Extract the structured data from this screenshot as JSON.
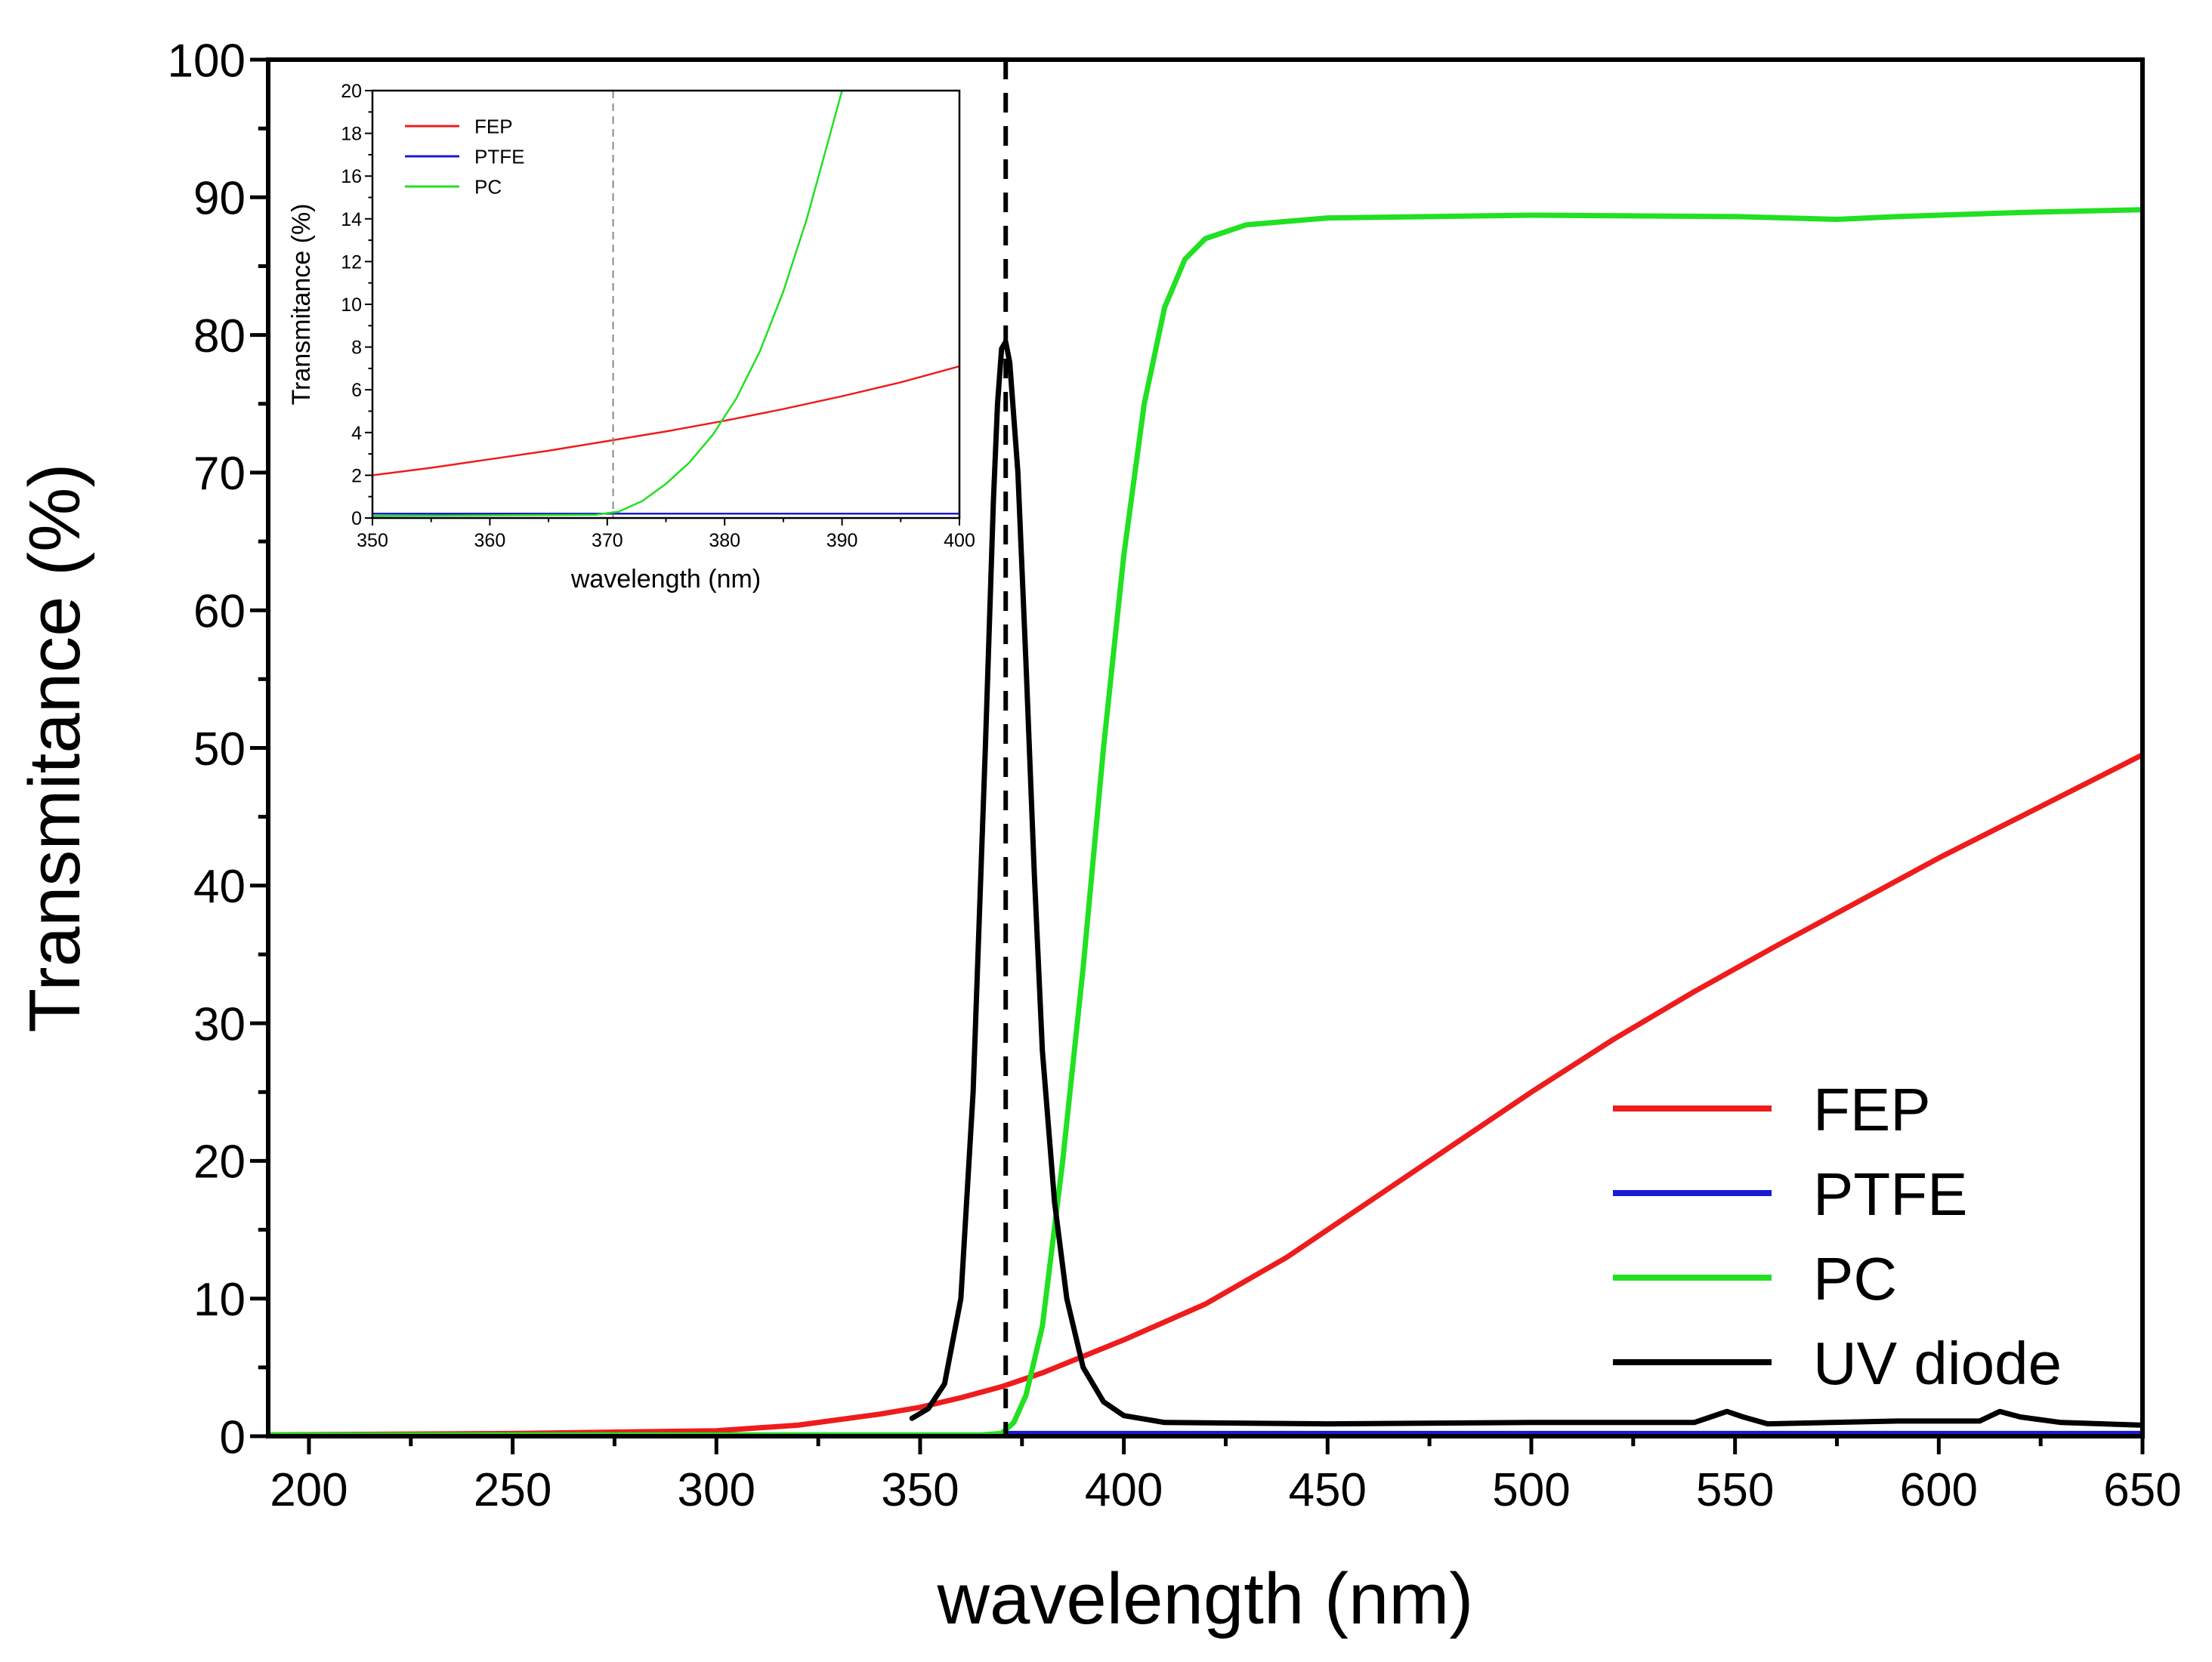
{
  "chart_data": [
    {
      "type": "line",
      "xlabel": "wavelength (nm)",
      "ylabel": "Transmitance (%)",
      "xlim": [
        190,
        650
      ],
      "ylim": [
        0,
        100
      ],
      "xticks": [
        200,
        250,
        300,
        350,
        400,
        450,
        500,
        550,
        600,
        650
      ],
      "yticks": [
        0,
        10,
        20,
        30,
        40,
        50,
        60,
        70,
        80,
        90,
        100
      ],
      "vline": 371,
      "legend_position": "bottom-right",
      "series": [
        {
          "name": "FEP",
          "color": "#ee1c1c",
          "points": [
            [
              190,
              0.1
            ],
            [
              250,
              0.2
            ],
            [
              300,
              0.4
            ],
            [
              320,
              0.8
            ],
            [
              340,
              1.6
            ],
            [
              350,
              2.1
            ],
            [
              360,
              2.8
            ],
            [
              370,
              3.6
            ],
            [
              380,
              4.6
            ],
            [
              390,
              5.8
            ],
            [
              400,
              7.0
            ],
            [
              420,
              9.6
            ],
            [
              440,
              13.0
            ],
            [
              460,
              17.0
            ],
            [
              480,
              21.0
            ],
            [
              500,
              25.0
            ],
            [
              520,
              28.8
            ],
            [
              540,
              32.3
            ],
            [
              560,
              35.6
            ],
            [
              580,
              38.8
            ],
            [
              600,
              42.0
            ],
            [
              620,
              45.0
            ],
            [
              640,
              48.0
            ],
            [
              650,
              49.5
            ]
          ]
        },
        {
          "name": "PTFE",
          "color": "#1a1ad6",
          "points": [
            [
              190,
              0.0
            ],
            [
              371,
              0.0
            ],
            [
              371,
              0.2
            ],
            [
              650,
              0.2
            ]
          ]
        },
        {
          "name": "PC",
          "color": "#22e022",
          "points": [
            [
              190,
              0.1
            ],
            [
              365,
              0.1
            ],
            [
              370,
              0.2
            ],
            [
              373,
              1.0
            ],
            [
              376,
              3.0
            ],
            [
              380,
              8.0
            ],
            [
              385,
              20.0
            ],
            [
              390,
              34.0
            ],
            [
              395,
              50.0
            ],
            [
              400,
              64.0
            ],
            [
              405,
              75.0
            ],
            [
              410,
              82.0
            ],
            [
              415,
              85.5
            ],
            [
              420,
              87.0
            ],
            [
              430,
              88.0
            ],
            [
              450,
              88.5
            ],
            [
              500,
              88.7
            ],
            [
              550,
              88.6
            ],
            [
              575,
              88.4
            ],
            [
              590,
              88.6
            ],
            [
              620,
              88.9
            ],
            [
              650,
              89.1
            ]
          ]
        },
        {
          "name": "UV diode",
          "color": "#000000",
          "points": [
            [
              348,
              1.3
            ],
            [
              352,
              2.0
            ],
            [
              356,
              3.8
            ],
            [
              360,
              10.0
            ],
            [
              363,
              25.0
            ],
            [
              366,
              50.0
            ],
            [
              368,
              68.0
            ],
            [
              369,
              75.0
            ],
            [
              370,
              79.0
            ],
            [
              371,
              79.5
            ],
            [
              372,
              78.0
            ],
            [
              374,
              70.0
            ],
            [
              376,
              56.0
            ],
            [
              378,
              41.0
            ],
            [
              380,
              28.0
            ],
            [
              383,
              17.0
            ],
            [
              386,
              10.0
            ],
            [
              390,
              5.0
            ],
            [
              395,
              2.5
            ],
            [
              400,
              1.5
            ],
            [
              410,
              1.0
            ],
            [
              450,
              0.9
            ],
            [
              500,
              1.0
            ],
            [
              540,
              1.0
            ],
            [
              544,
              1.4
            ],
            [
              548,
              1.8
            ],
            [
              552,
              1.4
            ],
            [
              558,
              0.9
            ],
            [
              590,
              1.1
            ],
            [
              610,
              1.1
            ],
            [
              615,
              1.8
            ],
            [
              620,
              1.4
            ],
            [
              630,
              1.0
            ],
            [
              650,
              0.8
            ]
          ]
        }
      ]
    },
    {
      "type": "line",
      "role": "inset",
      "xlabel": "wavelength (nm)",
      "ylabel": "Transmitance (%)",
      "xlim": [
        350,
        400
      ],
      "ylim": [
        0,
        20
      ],
      "xticks": [
        350,
        360,
        370,
        380,
        390,
        400
      ],
      "yticks": [
        0,
        2,
        4,
        6,
        8,
        10,
        12,
        14,
        16,
        18,
        20
      ],
      "vline": 370.5,
      "legend_position": "top-left",
      "series": [
        {
          "name": "FEP",
          "color": "#ee1c1c",
          "points": [
            [
              350,
              2.0
            ],
            [
              355,
              2.35
            ],
            [
              360,
              2.75
            ],
            [
              365,
              3.15
            ],
            [
              370,
              3.6
            ],
            [
              375,
              4.05
            ],
            [
              380,
              4.55
            ],
            [
              385,
              5.1
            ],
            [
              390,
              5.7
            ],
            [
              395,
              6.35
            ],
            [
              400,
              7.1
            ]
          ]
        },
        {
          "name": "PTFE",
          "color": "#1a1ad6",
          "points": [
            [
              350,
              0.2
            ],
            [
              400,
              0.2
            ]
          ]
        },
        {
          "name": "PC",
          "color": "#22e022",
          "points": [
            [
              350,
              0.1
            ],
            [
              369,
              0.15
            ],
            [
              371,
              0.3
            ],
            [
              373,
              0.8
            ],
            [
              375,
              1.6
            ],
            [
              377,
              2.6
            ],
            [
              379,
              3.9
            ],
            [
              381,
              5.6
            ],
            [
              383,
              7.8
            ],
            [
              385,
              10.6
            ],
            [
              387,
              14.0
            ],
            [
              389,
              18.0
            ],
            [
              390,
              20.0
            ]
          ]
        }
      ]
    }
  ]
}
